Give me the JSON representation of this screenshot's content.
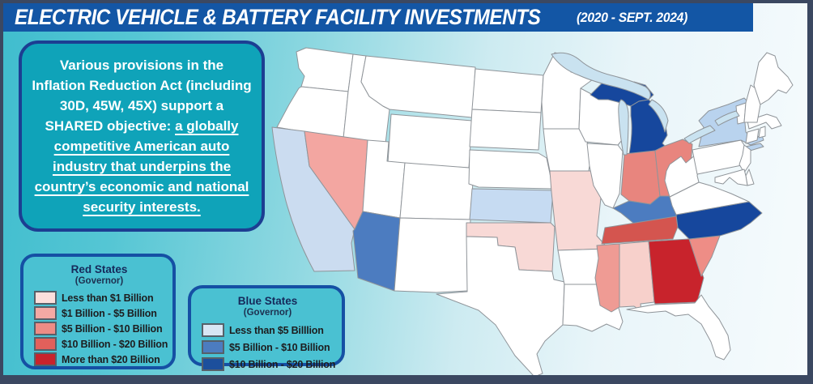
{
  "title": {
    "text": "ELECTRIC VEHICLE & BATTERY FACILITY INVESTMENTS",
    "period": "(2020 - SEPT. 2024)"
  },
  "message": {
    "intro": "Various provisions in the Inflation Reduction Act (including 30D, 45W, 45X) support a SHARED objective: ",
    "emphasis": "a globally competitive American auto industry that underpins the country’s economic and national security interests."
  },
  "legends": {
    "red": {
      "title": "Red States",
      "subtitle": "(Governor)",
      "items": [
        {
          "label": "Less than $1 Billion",
          "color": "#fbdfdc"
        },
        {
          "label": "$1 Billion - $5 Billion",
          "color": "#f4a9a4"
        },
        {
          "label": "$5 Billion - $10 Billion",
          "color": "#ee8c85"
        },
        {
          "label": "$10 Billion - $20 Billion",
          "color": "#e2605b"
        },
        {
          "label": "More than $20 Billion",
          "color": "#c8232c"
        }
      ]
    },
    "blue": {
      "title": "Blue States",
      "subtitle": "(Governor)",
      "items": [
        {
          "label": "Less than $5 Billlion",
          "color": "#d8e6f4"
        },
        {
          "label": "$5 Billion - $10 Billion",
          "color": "#4c7cc0"
        },
        {
          "label": "$10 Billion - $20 Billion",
          "color": "#1c4f9c"
        }
      ]
    }
  },
  "map": {
    "default_fill": "#ffffff",
    "border_color": "#8f9499",
    "lake_color": "#c9e2f0",
    "state_values": {
      "CA": {
        "party": "blue",
        "range": "Less than $5 Billlion",
        "color": "#cbdcf0"
      },
      "KS": {
        "party": "blue",
        "range": "Less than $5 Billlion",
        "color": "#c6dbf2"
      },
      "NY": {
        "party": "blue",
        "range": "Less than $5 Billlion",
        "color": "#b9d3ee"
      },
      "AZ": {
        "party": "blue",
        "range": "$5 Billion - $10 Billion",
        "color": "#4c7cc0"
      },
      "KY": {
        "party": "blue",
        "range": "$5 Billion - $10 Billion",
        "color": "#4c7cc0"
      },
      "MI": {
        "party": "blue",
        "range": "$10 Billion - $20 Billion",
        "color": "#16479d"
      },
      "NC": {
        "party": "blue",
        "range": "$10 Billion - $20 Billion",
        "color": "#16479d"
      },
      "OK": {
        "party": "red",
        "range": "Less than $1 Billion",
        "color": "#f8d9d6"
      },
      "MO": {
        "party": "red",
        "range": "Less than $1 Billion",
        "color": "#f8d9d6"
      },
      "AL": {
        "party": "red",
        "range": "Less than $1 Billion",
        "color": "#f7d0cb"
      },
      "NV": {
        "party": "red",
        "range": "$1 Billion - $5 Billion",
        "color": "#f3a6a1"
      },
      "MS": {
        "party": "red",
        "range": "$1 Billion - $5 Billion",
        "color": "#ef9b94"
      },
      "IN": {
        "party": "red",
        "range": "$5 Billion - $10 Billion",
        "color": "#e8857e"
      },
      "OH": {
        "party": "red",
        "range": "$5 Billion - $10 Billion",
        "color": "#e8857e"
      },
      "SC": {
        "party": "red",
        "range": "$5 Billion - $10 Billion",
        "color": "#ee8d86"
      },
      "TN": {
        "party": "red",
        "range": "$10 Billion - $20 Billion",
        "color": "#d4554f"
      },
      "GA": {
        "party": "red",
        "range": "More than $20 Billion",
        "color": "#c8232c"
      }
    }
  },
  "palette": {
    "frame": "#3b4861",
    "title_bar": "#1356a5",
    "message_box_fill": "#0fa3b9",
    "message_box_border": "#1c3e92",
    "legend_fill": "#4ac1d2",
    "legend_border": "#1550a4",
    "background_teal": "#40bdce",
    "background_light": "#f6fbfd"
  }
}
